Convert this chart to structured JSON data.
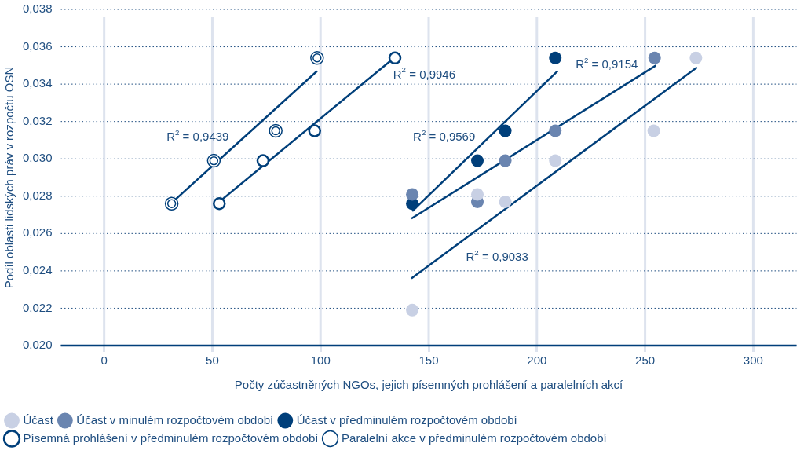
{
  "chart_data": {
    "type": "scatter",
    "xlabel": "Počty zúčastněných NGOs, jejich písemných prohlášení a paralelních akcí",
    "ylabel": "Podíl oblasti lidských práv v rozpočtu OSN",
    "xlim": [
      -20,
      320
    ],
    "xticks": [
      0,
      50,
      100,
      150,
      200,
      250,
      300
    ],
    "ylim": [
      0.02,
      0.038
    ],
    "yticks": [
      {
        "value": 0.02,
        "label": "0,020"
      },
      {
        "value": 0.022,
        "label": "0,022"
      },
      {
        "value": 0.024,
        "label": "0,024"
      },
      {
        "value": 0.026,
        "label": "0,026"
      },
      {
        "value": 0.028,
        "label": "0,028"
      },
      {
        "value": 0.03,
        "label": "0,030"
      },
      {
        "value": 0.032,
        "label": "0,032"
      },
      {
        "value": 0.034,
        "label": "0,034"
      },
      {
        "value": 0.036,
        "label": "0,036"
      },
      {
        "value": 0.038,
        "label": "0,038"
      }
    ],
    "grid": true,
    "legend": "bottom",
    "series": [
      {
        "name": "Účast",
        "color": "#c8d0e4",
        "marker": "circle",
        "x": [
          142.4,
          172.5,
          185.4,
          208.5,
          254,
          273.5
        ],
        "values": [
          0.0219,
          0.0281,
          0.0277,
          0.0299,
          0.0315,
          0.0354
        ]
      },
      {
        "name": "Účast v minulém rozpočtovém období",
        "color": "#6a85b0",
        "marker": "circle",
        "x": [
          142.4,
          172.5,
          185.4,
          208.5,
          254.4
        ],
        "values": [
          0.0281,
          0.0277,
          0.0299,
          0.0315,
          0.0354
        ]
      },
      {
        "name": "Účast v předminulém rozpočtovém období",
        "color": "#003f7a",
        "marker": "circle",
        "x": [
          142.4,
          172.5,
          185.4,
          208.5
        ],
        "values": [
          0.0276,
          0.0299,
          0.0315,
          0.0354
        ]
      },
      {
        "name": "Písemná prohlášení v předminulém rozpočtovém období",
        "color": "#003f7a",
        "marker": "circle",
        "x": [
          53.2,
          73.4,
          97.3,
          134.4
        ],
        "values": [
          0.0276,
          0.0299,
          0.0315,
          0.0354
        ]
      },
      {
        "name": "Paralelní akce v předminulém rozpočtovém období",
        "color": "#003f7a",
        "x": [
          31.2,
          50.7,
          79.3,
          98.4
        ],
        "values": [
          0.0276,
          0.0299,
          0.0315,
          0.0354
        ]
      },
      {
        "type": "line",
        "color": "#003f7a",
        "x": [
          30.8,
          98.4
        ],
        "values": [
          0.0276,
          0.0347
        ]
      },
      {
        "type": "line",
        "color": "#003f7a",
        "x": [
          53.2,
          134
        ],
        "values": [
          0.0277,
          0.0354
        ]
      },
      {
        "type": "line",
        "color": "#003f7a",
        "x": [
          142.4,
          209.6
        ],
        "values": [
          0.0272,
          0.0347
        ]
      },
      {
        "type": "line",
        "color": "#003f7a",
        "x": [
          142,
          255
        ],
        "values": [
          0.0268,
          0.035
        ]
      },
      {
        "type": "line",
        "color": "#003f7a",
        "x": [
          142,
          274
        ],
        "values": [
          0.0236,
          0.0349
        ]
      }
    ],
    "annotations": [
      "R$^{2}$ = 0,9439",
      "R$^{2}$ = 0,9946",
      "R$^{2}$ = 0,9154",
      "R$^{2}$ = 0,9569",
      "R$^{2}$ = 0,9033"
    ]
  }
}
